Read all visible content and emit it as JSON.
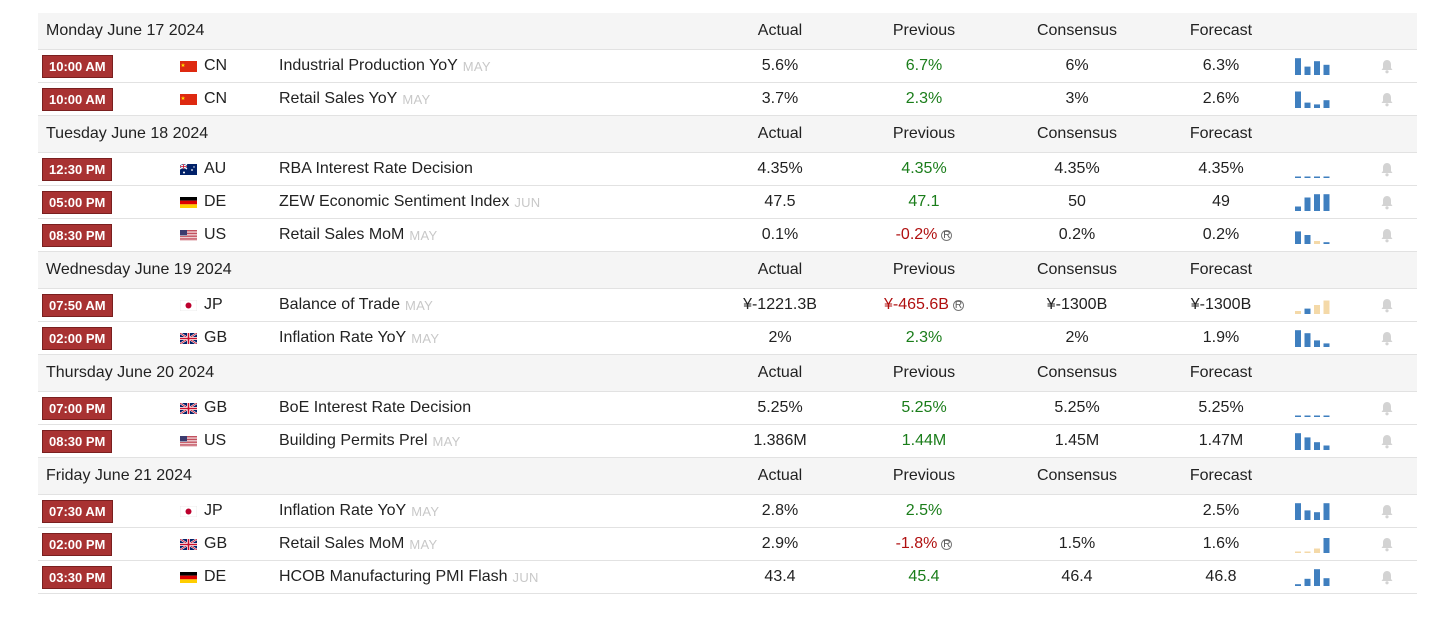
{
  "columns": {
    "actual": "Actual",
    "previous": "Previous",
    "consensus": "Consensus",
    "forecast": "Forecast"
  },
  "days": [
    {
      "date": "Monday June 17 2024",
      "events": [
        {
          "time": "10:00 AM",
          "flag": "cn",
          "country": "CN",
          "name": "Industrial Production YoY",
          "period": "MAY",
          "actual": "5.6%",
          "previous": "6.7%",
          "previous_tone": "green",
          "revised": false,
          "consensus": "6%",
          "forecast": "6.3%",
          "spark": [
            5.6,
            2.8,
            4.6,
            3.4
          ],
          "spark_tones": [
            "blue",
            "blue",
            "blue",
            "blue"
          ]
        },
        {
          "time": "10:00 AM",
          "flag": "cn",
          "country": "CN",
          "name": "Retail Sales YoY",
          "period": "MAY",
          "actual": "3.7%",
          "previous": "2.3%",
          "previous_tone": "green",
          "revised": false,
          "consensus": "3%",
          "forecast": "2.6%",
          "spark": [
            5.5,
            1.8,
            1.2,
            2.6
          ],
          "spark_tones": [
            "blue",
            "blue",
            "blue",
            "blue"
          ]
        }
      ]
    },
    {
      "date": "Tuesday June 18 2024",
      "events": [
        {
          "time": "12:30 PM",
          "flag": "au",
          "country": "AU",
          "name": "RBA Interest Rate Decision",
          "period": "",
          "actual": "4.35%",
          "previous": "4.35%",
          "previous_tone": "green",
          "revised": false,
          "consensus": "4.35%",
          "forecast": "4.35%",
          "spark": [
            0.4,
            0.4,
            0.4,
            0.4
          ],
          "spark_tones": [
            "blue",
            "blue",
            "blue",
            "blue"
          ]
        },
        {
          "time": "05:00 PM",
          "flag": "de",
          "country": "DE",
          "name": "ZEW Economic Sentiment Index",
          "period": "JUN",
          "actual": "47.5",
          "previous": "47.1",
          "previous_tone": "green",
          "revised": false,
          "consensus": "50",
          "forecast": "49",
          "spark": [
            1.5,
            4.5,
            5.6,
            5.6
          ],
          "spark_tones": [
            "blue",
            "blue",
            "blue",
            "blue"
          ]
        },
        {
          "time": "08:30 PM",
          "flag": "us",
          "country": "US",
          "name": "Retail Sales MoM",
          "period": "MAY",
          "actual": "0.1%",
          "previous": "-0.2%",
          "previous_tone": "red",
          "revised": true,
          "consensus": "0.2%",
          "forecast": "0.2%",
          "spark": [
            4.2,
            3.0,
            1.0,
            0.6
          ],
          "spark_tones": [
            "blue",
            "blue",
            "tan",
            "blue"
          ]
        }
      ]
    },
    {
      "date": "Wednesday June 19 2024",
      "events": [
        {
          "time": "07:50 AM",
          "flag": "jp",
          "country": "JP",
          "name": "Balance of Trade",
          "period": "MAY",
          "actual": "¥-1221.3B",
          "previous": "¥-465.6B",
          "previous_tone": "red",
          "revised": true,
          "consensus": "¥-1300B",
          "forecast": "¥-1300B",
          "spark": [
            1.0,
            1.8,
            3.0,
            4.5
          ],
          "spark_tones": [
            "tan",
            "blue",
            "tan",
            "tan"
          ]
        },
        {
          "time": "02:00 PM",
          "flag": "gb",
          "country": "GB",
          "name": "Inflation Rate YoY",
          "period": "MAY",
          "actual": "2%",
          "previous": "2.3%",
          "previous_tone": "green",
          "revised": false,
          "consensus": "2%",
          "forecast": "1.9%",
          "spark": [
            5.6,
            4.6,
            2.2,
            1.2
          ],
          "spark_tones": [
            "blue",
            "blue",
            "blue",
            "blue"
          ]
        }
      ]
    },
    {
      "date": "Thursday June 20 2024",
      "events": [
        {
          "time": "07:00 PM",
          "flag": "gb",
          "country": "GB",
          "name": "BoE Interest Rate Decision",
          "period": "",
          "actual": "5.25%",
          "previous": "5.25%",
          "previous_tone": "green",
          "revised": false,
          "consensus": "5.25%",
          "forecast": "5.25%",
          "spark": [
            0.4,
            0.4,
            0.4,
            0.4
          ],
          "spark_tones": [
            "blue",
            "blue",
            "blue",
            "blue"
          ]
        },
        {
          "time": "08:30 PM",
          "flag": "us",
          "country": "US",
          "name": "Building Permits Prel",
          "period": "MAY",
          "actual": "1.386M",
          "previous": "1.44M",
          "previous_tone": "green",
          "revised": false,
          "consensus": "1.45M",
          "forecast": "1.47M",
          "spark": [
            5.6,
            4.2,
            2.6,
            1.5
          ],
          "spark_tones": [
            "blue",
            "blue",
            "blue",
            "blue"
          ]
        }
      ]
    },
    {
      "date": "Friday June 21 2024",
      "events": [
        {
          "time": "07:30 AM",
          "flag": "jp",
          "country": "JP",
          "name": "Inflation Rate YoY",
          "period": "MAY",
          "actual": "2.8%",
          "previous": "2.5%",
          "previous_tone": "green",
          "revised": false,
          "consensus": "",
          "forecast": "2.5%",
          "spark": [
            5.6,
            3.2,
            2.6,
            5.6
          ],
          "spark_tones": [
            "blue",
            "blue",
            "blue",
            "blue"
          ]
        },
        {
          "time": "02:00 PM",
          "flag": "gb",
          "country": "GB",
          "name": "Retail Sales MoM",
          "period": "MAY",
          "actual": "2.9%",
          "previous": "-1.8%",
          "previous_tone": "red",
          "revised": true,
          "consensus": "1.5%",
          "forecast": "1.6%",
          "spark": [
            0.3,
            0.5,
            1.5,
            5.0
          ],
          "spark_tones": [
            "tan",
            "tan",
            "tan",
            "blue"
          ]
        },
        {
          "time": "03:30 PM",
          "flag": "de",
          "country": "DE",
          "name": "HCOB Manufacturing PMI Flash",
          "period": "JUN",
          "actual": "43.4",
          "previous": "45.4",
          "previous_tone": "green",
          "revised": false,
          "consensus": "46.4",
          "forecast": "46.8",
          "spark": [
            0.6,
            2.4,
            5.6,
            2.6
          ],
          "spark_tones": [
            "blue",
            "blue",
            "blue",
            "blue"
          ]
        }
      ]
    }
  ],
  "icons": {
    "bell": "bell-icon",
    "revised": "revised-icon"
  },
  "colors": {
    "badge": "#a83232",
    "green": "#1a7d1a",
    "red": "#b01010",
    "spark_blue": "#3f7fbf",
    "spark_tan": "#f4d9a8"
  }
}
